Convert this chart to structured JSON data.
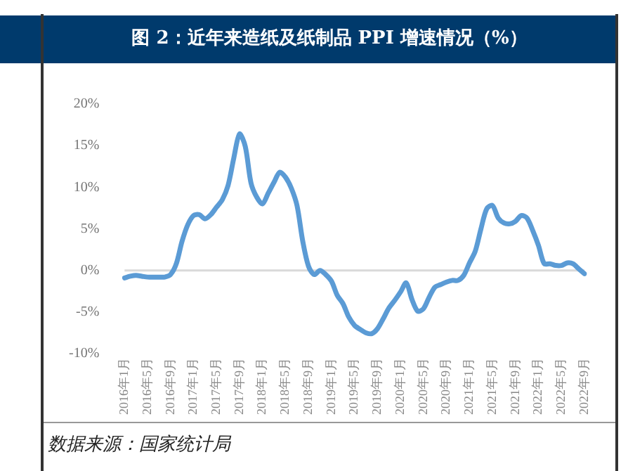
{
  "chart_data": {
    "type": "line",
    "title": "图 2：近年来造纸及纸制品 PPI 增速情况（%）",
    "categories": [
      "2016年1月",
      null,
      null,
      null,
      "2016年5月",
      null,
      null,
      null,
      "2016年9月",
      null,
      null,
      null,
      "2017年1月",
      null,
      null,
      null,
      "2017年5月",
      null,
      null,
      null,
      "2017年9月",
      null,
      null,
      null,
      "2018年1月",
      null,
      null,
      null,
      "2018年5月",
      null,
      null,
      null,
      "2018年9月",
      null,
      null,
      null,
      "2019年1月",
      null,
      null,
      null,
      "2019年5月",
      null,
      null,
      null,
      "2019年9月",
      null,
      null,
      null,
      "2020年1月",
      null,
      null,
      null,
      "2020年5月",
      null,
      null,
      null,
      "2020年9月",
      null,
      null,
      null,
      "2021年1月",
      null,
      null,
      null,
      "2021年5月",
      null,
      null,
      null,
      "2021年9月",
      null,
      null,
      null,
      "2022年1月",
      null,
      null,
      null,
      "2022年5月",
      null,
      null,
      null,
      "2022年9月"
    ],
    "series": [
      {
        "color": "#5b9bd5",
        "values": [
          -0.9,
          -0.7,
          -0.6,
          -0.7,
          -0.8,
          -0.8,
          -0.8,
          -0.8,
          -0.5,
          0.8,
          3.5,
          5.5,
          6.6,
          6.7,
          6.2,
          6.7,
          7.6,
          8.5,
          10.2,
          13.5,
          16.4,
          14.9,
          10.5,
          8.8,
          8.0,
          9.3,
          10.6,
          11.8,
          11.2,
          9.9,
          7.8,
          3.5,
          0.5,
          -0.5,
          0,
          -0.5,
          -1.3,
          -3.0,
          -4.0,
          -5.6,
          -6.6,
          -7.1,
          -7.5,
          -7.6,
          -7.0,
          -5.8,
          -4.5,
          -3.6,
          -2.6,
          -1.5,
          -3.5,
          -4.9,
          -4.6,
          -3.2,
          -2.0,
          -1.7,
          -1.4,
          -1.2,
          -1.2,
          -0.6,
          0.9,
          2.3,
          5.0,
          7.4,
          7.8,
          6.3,
          5.7,
          5.6,
          5.9,
          6.6,
          6.3,
          4.8,
          3.0,
          0.8,
          0.8,
          0.6,
          0.6,
          0.9,
          0.8,
          0.2,
          -0.4
        ]
      }
    ],
    "ylim": [
      -10,
      20
    ],
    "yticks": [
      {
        "value": -10,
        "label": "-10%"
      },
      {
        "value": -5,
        "label": "-5%"
      },
      {
        "value": 0,
        "label": "0%"
      },
      {
        "value": 5,
        "label": "5%"
      },
      {
        "value": 10,
        "label": "10%"
      },
      {
        "value": 15,
        "label": "15%"
      },
      {
        "value": 20,
        "label": "20%"
      }
    ],
    "ref_lines": [
      {
        "axis": "y",
        "value": 0,
        "color": "#d9d9d9"
      }
    ],
    "grid": false,
    "legend": false,
    "marker": "none",
    "line_style": "solid",
    "annotations": [
      "数据来源：国家统计局"
    ]
  }
}
